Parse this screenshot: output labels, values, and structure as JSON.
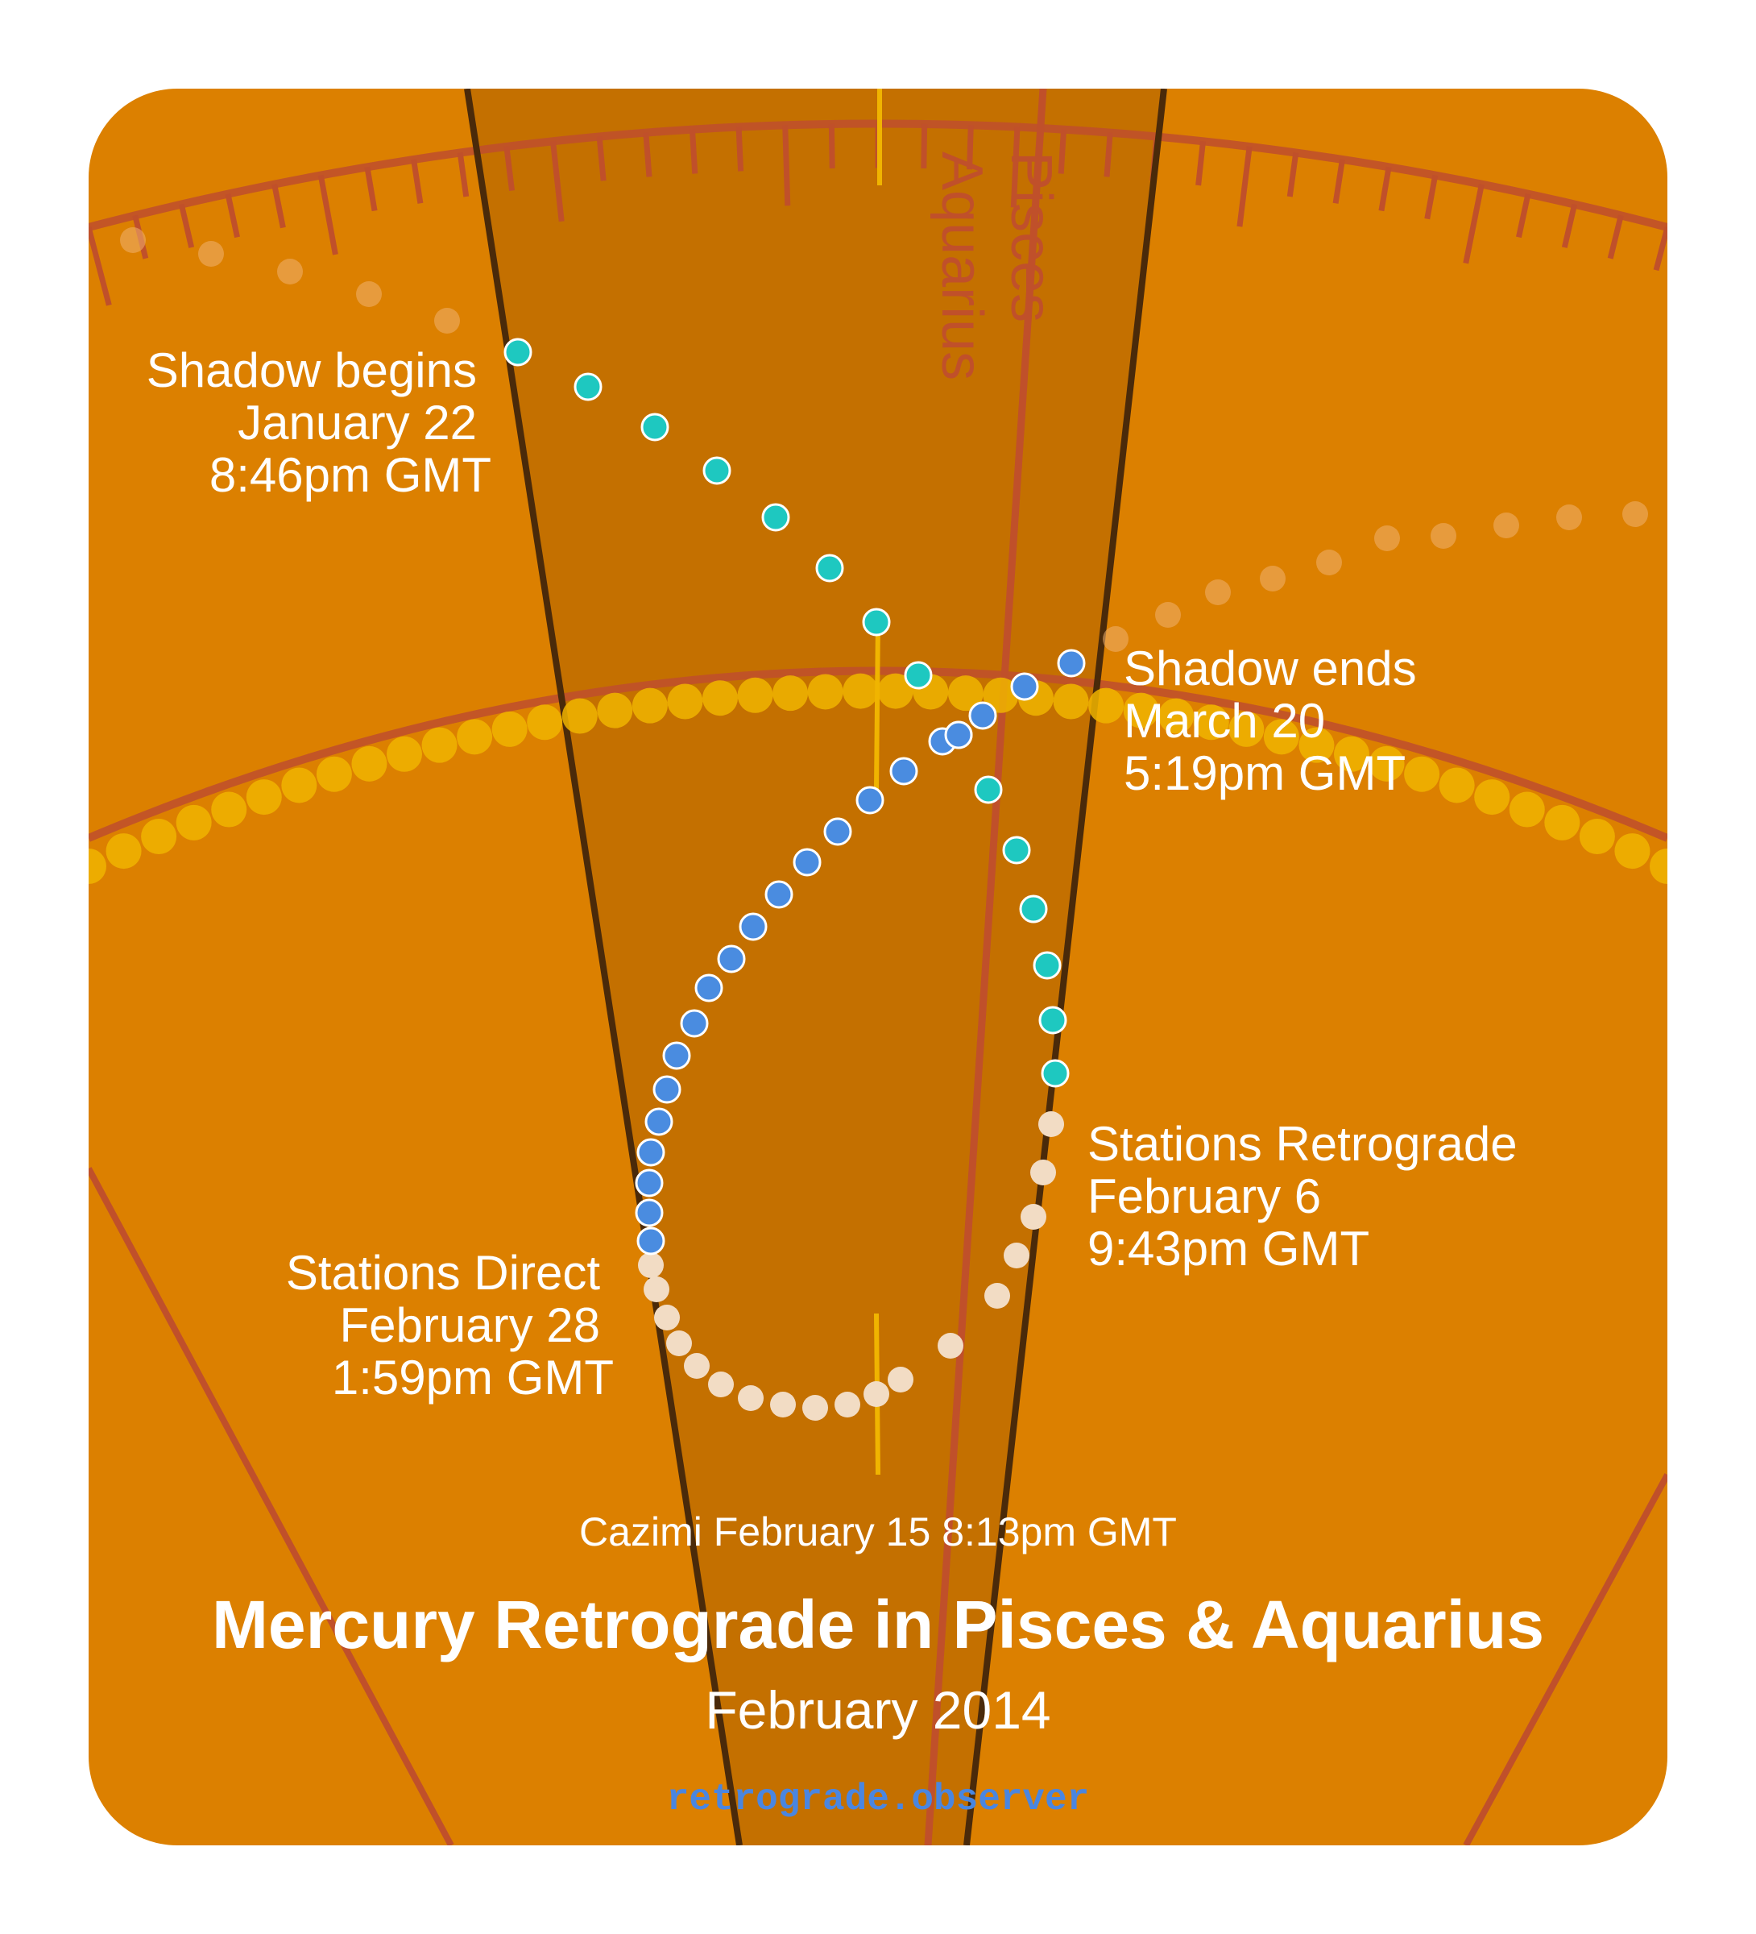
{
  "labels": {
    "shadow_begins": [
      "Shadow begins",
      "January 22",
      "8:46pm GMT"
    ],
    "shadow_ends": [
      "Shadow ends",
      "March 20",
      "5:19pm GMT"
    ],
    "stations_retrograde": [
      "Stations Retrograde",
      "February 6",
      "9:43pm GMT"
    ],
    "stations_direct": [
      "Stations Direct",
      "February 28",
      "1:59pm GMT"
    ],
    "cazimi": "Cazimi February 15 8:13pm GMT"
  },
  "signs": {
    "left": "Aquarius",
    "right": "Pisces"
  },
  "title": "Mercury Retrograde in Pisces & Aquarius",
  "subtitle": "February 2014",
  "footer": "retrograde.observer",
  "colors": {
    "background": "#dc8000",
    "shadow_zone": "#c47000",
    "zodiac_line": "#c0502a",
    "boundary_line": "#4a2a0a",
    "sun_dots": "#f0b400",
    "shadow_pre_dots": "#1ec8c0",
    "retrograde_dots": "#f2dcc4",
    "shadow_post_dots": "#4a8ce0",
    "outside_dots": "#f0b070"
  },
  "icons": [
    "mercury-dot",
    "sun-dot"
  ]
}
